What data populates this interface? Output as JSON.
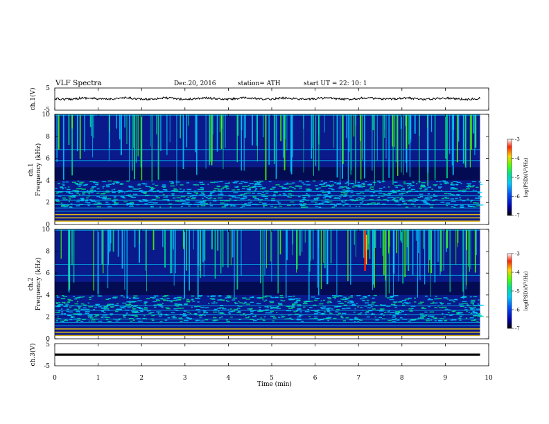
{
  "header": {
    "title": "VLF  Spectra",
    "date": "Dec.20, 2016",
    "station": "station= ATH",
    "start": "start  UT  =    22: 10: 1"
  },
  "colors": {
    "spec_bg": "#0a1a8a",
    "trace": "#000000",
    "colorbar": [
      "#000000",
      "#0000b0",
      "#0050ff",
      "#00c8ff",
      "#00e08c",
      "#50ff00",
      "#ffd000",
      "#ff2000",
      "#ffffff"
    ]
  },
  "chart_data": [
    {
      "type": "line",
      "panel": "ch1",
      "ylabel": "ch.1(V)",
      "ylim": [
        -5,
        5
      ],
      "yticks": [
        "5",
        "-5"
      ],
      "series": [
        {
          "x": [
            0,
            9.8
          ],
          "values": [
            0.2,
            0.2
          ]
        }
      ]
    },
    {
      "type": "heatmap",
      "panel": "ch1-spectrogram",
      "ylabel_line1": "ch.1",
      "ylabel_line2": "Frequency  (kHz)",
      "ylim": [
        0,
        10
      ],
      "yticks": [
        "0",
        "2",
        "4",
        "6",
        "8",
        "10"
      ],
      "colorbar": {
        "label": "log(PSD)(V²/Hz)",
        "range": [
          -7,
          -3
        ],
        "ticks": [
          "-3",
          "-4",
          "-5",
          "-6",
          "-7"
        ]
      }
    },
    {
      "type": "heatmap",
      "panel": "ch2-spectrogram",
      "ylabel_line1": "ch.2",
      "ylabel_line2": "Frequency  (kHz)",
      "ylim": [
        0,
        10
      ],
      "yticks": [
        "0",
        "2",
        "4",
        "6",
        "8",
        "10"
      ],
      "colorbar": {
        "label": "log(PSD)(V²/Hz)",
        "range": [
          -7,
          -3
        ],
        "ticks": [
          "-3",
          "-4",
          "-5",
          "-6",
          "-7"
        ]
      }
    },
    {
      "type": "line",
      "panel": "ch3",
      "ylabel": "ch.3(V)",
      "ylim": [
        -5,
        5
      ],
      "yticks": [
        "5",
        "-5"
      ],
      "series": [
        {
          "x": [
            0,
            9.8
          ],
          "values": [
            0.0,
            0.0
          ]
        }
      ]
    }
  ],
  "xaxis": {
    "label": "Time  (min)",
    "range": [
      0,
      10
    ],
    "ticks": [
      "0",
      "1",
      "2",
      "3",
      "4",
      "5",
      "6",
      "7",
      "8",
      "9",
      "10"
    ]
  }
}
